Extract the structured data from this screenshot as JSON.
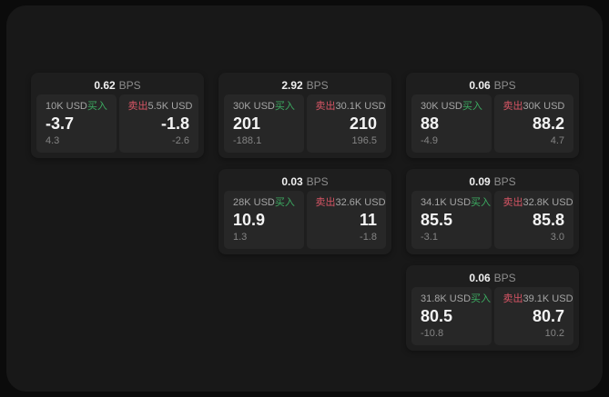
{
  "labels": {
    "bps_unit": "BPS",
    "buy": "买入",
    "sell": "卖出"
  },
  "colors": {
    "buy": "#3cab61",
    "sell": "#d75565",
    "surface": "#181818",
    "card": "#1e1e1e",
    "panel": "#272727"
  },
  "cards": [
    {
      "bps": "0.62",
      "buy": {
        "amount": "10K USD",
        "price": "-3.7",
        "sub": "4.3"
      },
      "sell": {
        "amount": "5.5K USD",
        "price": "-1.8",
        "sub": "-2.6"
      }
    },
    {
      "bps": "2.92",
      "buy": {
        "amount": "30K USD",
        "price": "201",
        "sub": "-188.1"
      },
      "sell": {
        "amount": "30.1K USD",
        "price": "210",
        "sub": "196.5"
      }
    },
    {
      "bps": "0.06",
      "buy": {
        "amount": "30K USD",
        "price": "88",
        "sub": "-4.9"
      },
      "sell": {
        "amount": "30K USD",
        "price": "88.2",
        "sub": "4.7"
      }
    },
    {
      "bps": "0.03",
      "buy": {
        "amount": "28K USD",
        "price": "10.9",
        "sub": "1.3"
      },
      "sell": {
        "amount": "32.6K USD",
        "price": "11",
        "sub": "-1.8"
      }
    },
    {
      "bps": "0.09",
      "buy": {
        "amount": "34.1K USD",
        "price": "85.5",
        "sub": "-3.1"
      },
      "sell": {
        "amount": "32.8K USD",
        "price": "85.8",
        "sub": "3.0"
      }
    },
    {
      "bps": "0.06",
      "buy": {
        "amount": "31.8K USD",
        "price": "80.5",
        "sub": "-10.8"
      },
      "sell": {
        "amount": "39.1K USD",
        "price": "80.7",
        "sub": "10.2"
      }
    }
  ]
}
